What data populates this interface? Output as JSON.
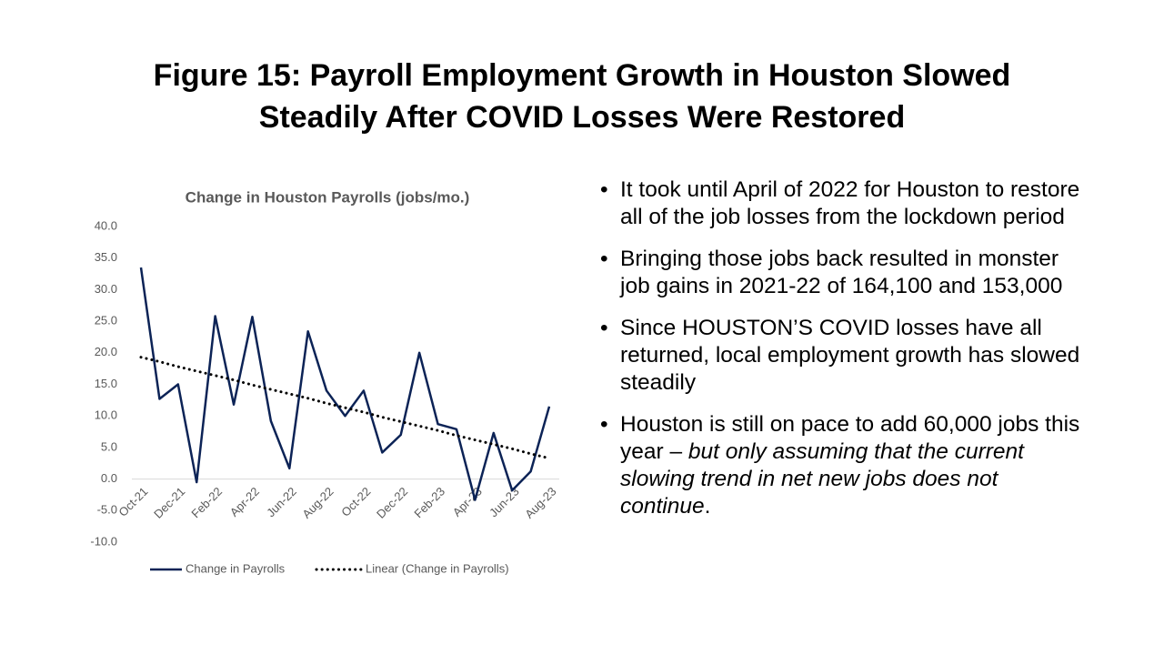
{
  "slide": {
    "title_lines": [
      "Figure 15: Payroll Employment Growth in Houston Slowed",
      "Steadily After COVID Losses Were Restored"
    ]
  },
  "chart_data": {
    "type": "line",
    "title": "Change in Houston Payrolls (jobs/mo.)",
    "categories": [
      "Oct-21",
      null,
      "Dec-21",
      null,
      "Feb-22",
      null,
      "Apr-22",
      null,
      "Jun-22",
      null,
      "Aug-22",
      null,
      "Oct-22",
      null,
      "Dec-22",
      null,
      "Feb-23",
      null,
      "Apr-23",
      null,
      "Jun-23",
      null,
      "Aug-23"
    ],
    "series": [
      {
        "name": "Change in Payrolls",
        "color": "#0c2356",
        "style": "solid",
        "values": [
          33.5,
          12.7,
          15.0,
          -0.5,
          25.8,
          11.8,
          25.7,
          9.2,
          1.7,
          23.4,
          14.0,
          10.0,
          14.0,
          4.2,
          7.0,
          20.0,
          8.7,
          7.9,
          -3.3,
          7.3,
          -1.8,
          1.2,
          11.5
        ]
      },
      {
        "name": "Linear (Change in Payrolls)",
        "color": "#000000",
        "style": "dotted",
        "values": [
          19.3,
          18.6,
          17.8,
          17.1,
          16.4,
          15.7,
          14.9,
          14.2,
          13.5,
          12.8,
          12.0,
          11.3,
          10.6,
          9.8,
          9.1,
          8.4,
          7.7,
          6.9,
          6.2,
          5.5,
          4.8,
          4.0,
          3.3
        ]
      }
    ],
    "ylim": [
      -10,
      40
    ],
    "yticks": [
      {
        "value": -10,
        "label": "-10.0"
      },
      {
        "value": -5,
        "label": "-5.0"
      },
      {
        "value": 0,
        "label": "0.0"
      },
      {
        "value": 5,
        "label": "5.0"
      },
      {
        "value": 10,
        "label": "10.0"
      },
      {
        "value": 15,
        "label": "15.0"
      },
      {
        "value": 20,
        "label": "20.0"
      },
      {
        "value": 25,
        "label": "25.0"
      },
      {
        "value": 30,
        "label": "30.0"
      },
      {
        "value": 35,
        "label": "35.0"
      },
      {
        "value": 40,
        "label": "40.0"
      }
    ],
    "grid": false,
    "legend": "bottom"
  },
  "bullets": [
    [
      {
        "text": "It took until April of 2022 for Houston to restore all of the job losses from the lockdown period"
      }
    ],
    [
      {
        "text": "Bringing those jobs back resulted in monster job gains in 2021-22 of 164,100 and 153,000"
      }
    ],
    [
      {
        "text": "Since HOUSTON’S COVID losses have all returned, local employment growth has slowed steadily"
      }
    ],
    [
      {
        "text": "Houston is still on pace to add 60,000 jobs this year – "
      },
      {
        "text": "but only assuming that the current slowing trend in net new jobs does not continue",
        "italic": true
      },
      {
        "text": "."
      }
    ]
  ]
}
